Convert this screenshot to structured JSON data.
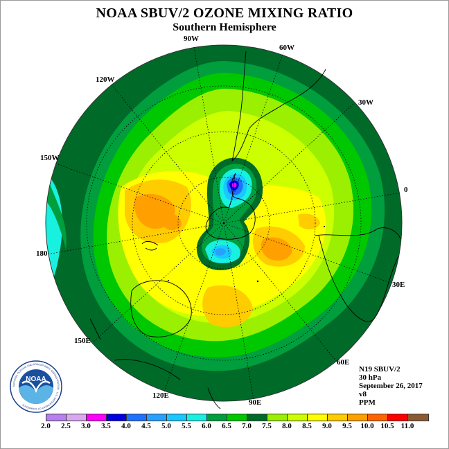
{
  "title": "NOAA SBUV/2 OZONE MIXING RATIO",
  "subtitle": "Southern Hemisphere",
  "longitudes": {
    "lon_90w": "90W",
    "lon_60w": "60W",
    "lon_120w": "120W",
    "lon_30w": "30W",
    "lon_150w": "150W",
    "lon_0": "0",
    "lon_180": "180",
    "lon_30e": "30E",
    "lon_150e": "150E",
    "lon_60e": "60E",
    "lon_120e": "120E",
    "lon_90e": "90E"
  },
  "meta": {
    "instrument": "N19 SBUV/2",
    "level": "30 hPa",
    "date": "September 26, 2017",
    "version": "v8",
    "units": "PPM"
  },
  "logo": {
    "text": "NOAA",
    "ring_text": "NATIONAL OCEANIC AND ATMOSPHERIC ADMINISTRATION · U.S. DEPARTMENT OF COMMERCE"
  },
  "legend": {
    "colors": [
      "#b77ff0",
      "#dba8f0",
      "#ff00ff",
      "#0000e0",
      "#1e72ff",
      "#28a0ff",
      "#18c8ff",
      "#18f0e0",
      "#009e3c",
      "#00c800",
      "#006a28",
      "#9af000",
      "#ccff00",
      "#ffff00",
      "#ffcc00",
      "#ffa000",
      "#ff6400",
      "#ff0000",
      "#8c5a32"
    ],
    "labels": [
      "2.0",
      "2.5",
      "3.0",
      "3.5",
      "4.0",
      "4.5",
      "5.0",
      "5.5",
      "6.0",
      "6.5",
      "7.0",
      "7.5",
      "8.0",
      "8.5",
      "9.0",
      "9.5",
      "10.0",
      "10.5",
      "11.0"
    ]
  },
  "colors": {
    "dark_green": "#006a28",
    "mid_green": "#009e3c",
    "green": "#00c800",
    "yellow_green": "#9af000",
    "lime": "#ccff00",
    "yellow": "#ffff00",
    "gold": "#ffcc00",
    "orange": "#ffa000",
    "cyan": "#18f0e0",
    "sky": "#18c8ff",
    "blue": "#1e72ff",
    "deep_blue": "#0000e0",
    "magenta": "#ff00ff"
  }
}
